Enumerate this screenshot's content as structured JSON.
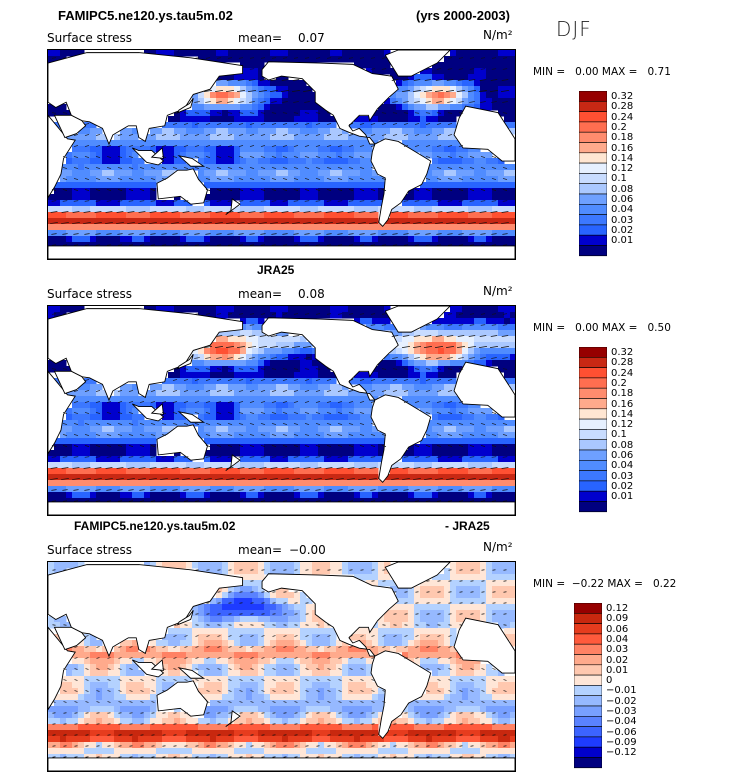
{
  "header": {
    "case_name": "FAMIPC5.ne120.ys.tau5m.02",
    "years": "(yrs 2000-2003)",
    "season": "DJF"
  },
  "colors": {
    "seq": [
      "#000080",
      "#0000cd",
      "#1e3cff",
      "#2864ff",
      "#3c78ff",
      "#508cff",
      "#6ea0ff",
      "#8cb4ff",
      "#aac8ff",
      "#c8dcff",
      "#e6f0ff",
      "#ffe6d2",
      "#ffc8aa",
      "#ffaa8c",
      "#ff8c6e",
      "#ff6e50",
      "#ff5032",
      "#e63c1e",
      "#c82814",
      "#960000"
    ],
    "div": [
      "#000080",
      "#0000cd",
      "#1e3cff",
      "#3c64ff",
      "#5a82ff",
      "#78a0ff",
      "#96b9ff",
      "#b4d2ff",
      "#dceaff",
      "#ffe6d7",
      "#ffc8af",
      "#ffaa8c",
      "#ff8264",
      "#ff5a3c",
      "#e63c1e",
      "#c8280f",
      "#960000"
    ],
    "land": "#ffffff",
    "coast": "#000000",
    "arrow": "#111111"
  },
  "chart_data": [
    {
      "type": "heatmap",
      "panel": "model",
      "title": "",
      "variable": "Surface stress",
      "units": "N/m²",
      "mean_label": "mean=",
      "mean_value": "0.07",
      "min_label": "MIN =",
      "min_value": "0.00",
      "max_label": "MAX =",
      "max_value": "0.71",
      "colorbar_labels": [
        "0.32",
        "0.28",
        "0.24",
        "0.2",
        "0.18",
        "0.16",
        "0.14",
        "0.12",
        "0.1",
        "0.08",
        "0.06",
        "0.04",
        "0.03",
        "0.02",
        "0.01"
      ],
      "colormap": "seq",
      "overlay": "wind stress vectors",
      "field_description": "Zonal-mean-dominated stress magnitude, high (>0.2) in Southern Ocean storm track, moderate in trade wind belts, low near equator"
    },
    {
      "type": "heatmap",
      "panel": "obs",
      "title": "JRA25",
      "variable": "Surface stress",
      "units": "N/m²",
      "mean_label": "mean=",
      "mean_value": "0.08",
      "min_label": "MIN =",
      "min_value": "0.00",
      "max_label": "MAX =",
      "max_value": "0.50",
      "colorbar_labels": [
        "0.32",
        "0.28",
        "0.24",
        "0.2",
        "0.18",
        "0.16",
        "0.14",
        "0.12",
        "0.1",
        "0.08",
        "0.06",
        "0.04",
        "0.03",
        "0.02",
        "0.01"
      ],
      "colormap": "seq",
      "overlay": "wind stress vectors"
    },
    {
      "type": "heatmap",
      "panel": "diff",
      "title_left": "FAMIPC5.ne120.ys.tau5m.02",
      "title_right": "- JRA25",
      "variable": "Surface stress",
      "units": "N/m²",
      "mean_label": "mean=",
      "mean_value": "−0.00",
      "min_label": "MIN =",
      "min_value": "−0.22",
      "max_label": "MAX =",
      "max_value": "0.22",
      "colorbar_labels": [
        "0.12",
        "0.09",
        "0.06",
        "0.04",
        "0.03",
        "0.02",
        "0.01",
        "0",
        "−0.01",
        "−0.02",
        "−0.03",
        "−0.04",
        "−0.06",
        "−0.09",
        "−0.12"
      ],
      "colormap": "div",
      "overlay": "wind stress difference vectors"
    }
  ]
}
